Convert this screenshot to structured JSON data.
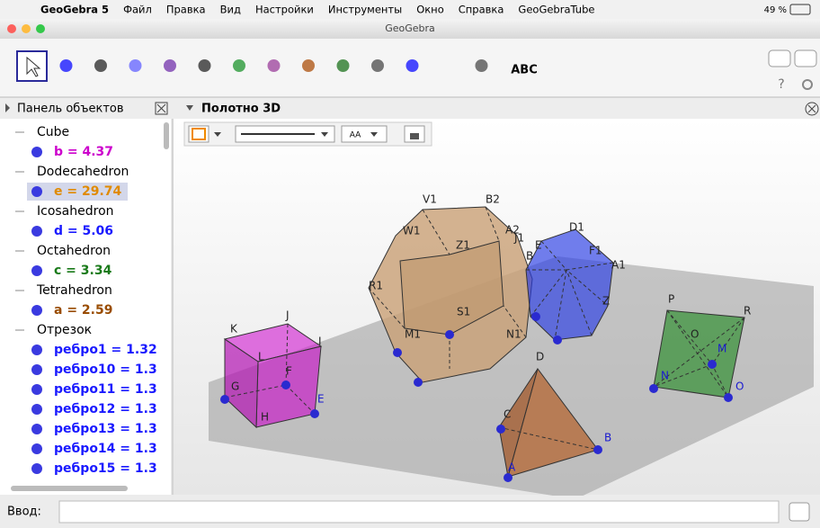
{
  "menu_bar": {
    "app": "GeoGebra 5",
    "items": [
      "Файл",
      "Правка",
      "Вид",
      "Настройки",
      "Инструменты",
      "Окно",
      "Справка",
      "GeoGebraTube"
    ],
    "battery": "49 %"
  },
  "window_title": "GeoGebra",
  "toolbar": {
    "text_tool": "ABC",
    "help": "?"
  },
  "algebra_panel": {
    "title": "Панель объектов",
    "groups": [
      {
        "name": "Cube",
        "items": [
          "b = 4.37"
        ]
      },
      {
        "name": "Dodecahedron",
        "items": [
          "e = 29.74"
        ]
      },
      {
        "name": "Icosahedron",
        "items": [
          "d = 5.06"
        ]
      },
      {
        "name": "Octahedron",
        "items": [
          "c = 3.34"
        ]
      },
      {
        "name": "Tetrahedron",
        "items": [
          "a = 2.59"
        ]
      },
      {
        "name": "Отрезок",
        "items": [
          "ребро1 = 1.32",
          "ребро10 = 1.3",
          "ребро11 = 1.3",
          "ребро12 = 1.3",
          "ребро13 = 1.3",
          "ребро14 = 1.3",
          "ребро15 = 1.3"
        ]
      }
    ]
  },
  "graphics_3d": {
    "title": "Полотно 3D",
    "style_bar_text": "AA",
    "point_labels": [
      "V1",
      "B2",
      "A2",
      "J1",
      "W1",
      "Z1",
      "D1",
      "E",
      "F1",
      "A1",
      "B",
      "Z",
      "R1",
      "S1",
      "M1",
      "N1",
      "K",
      "J",
      "I",
      "L",
      "F",
      "G",
      "E",
      "H",
      "D",
      "C",
      "B",
      "A",
      "P",
      "R",
      "O",
      "M",
      "N",
      "O"
    ]
  },
  "input_bar": {
    "label": "Ввод:"
  }
}
